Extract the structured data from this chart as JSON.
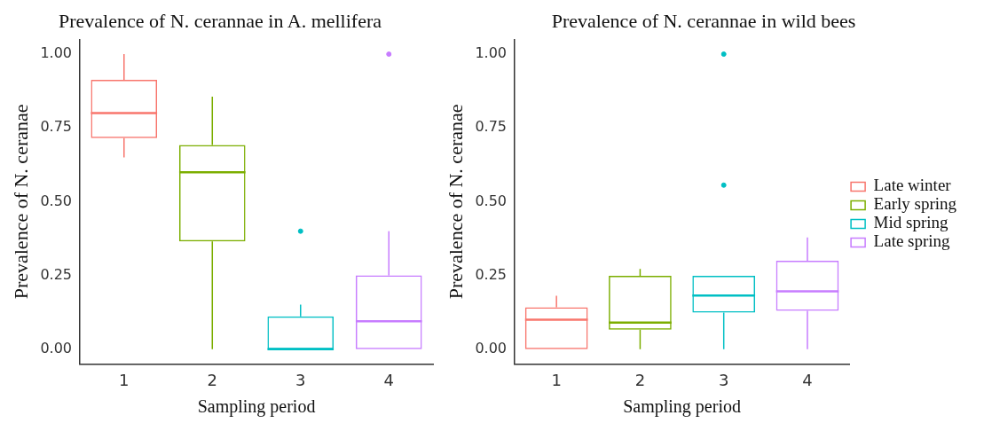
{
  "chart_data": [
    {
      "type": "box",
      "title": "Prevalence of N. cerannae in A. mellifera",
      "xlabel": "Sampling period",
      "ylabel": "Prevalence of N. ceranae",
      "categories": [
        "1",
        "2",
        "3",
        "4"
      ],
      "ylim": [
        -0.05,
        1.05
      ],
      "yticks": [
        {
          "value": 0,
          "label": "0.00"
        },
        {
          "value": 0.25,
          "label": "0.25"
        },
        {
          "value": 0.5,
          "label": "0.50"
        },
        {
          "value": 0.75,
          "label": "0.75"
        },
        {
          "value": 1,
          "label": "1.00"
        }
      ],
      "series": [
        {
          "color": "#f8766d",
          "boxes": [
            {
              "low": 0.65,
              "q1": 0.715,
              "median": 0.8,
              "q3": 0.913,
              "high": 1.0
            },
            null,
            null,
            null
          ]
        },
        {
          "color": "#7cae00",
          "boxes": [
            null,
            {
              "low": 0,
              "q1": 0.365,
              "median": 0.6,
              "q3": 0.692,
              "high": 0.856
            },
            null,
            null
          ]
        },
        {
          "color": "#00bfc4",
          "boxes": [
            null,
            null,
            {
              "low": 0,
              "q1": 0,
              "median": 0,
              "q3": 0.111,
              "high": 0.151,
              "outliers": [
                0.4
              ]
            },
            null
          ]
        },
        {
          "color": "#c77cff",
          "boxes": [
            null,
            null,
            null,
            {
              "low": 0,
              "q1": 0,
              "median": 0.095,
              "q3": 0.25,
              "high": 0.4,
              "outliers": [
                1.0
              ]
            }
          ]
        }
      ]
    },
    {
      "type": "box",
      "title": "Prevalence of N. cerannae in wild bees",
      "xlabel": "Sampling period",
      "ylabel": "Prevalence of N. ceranae",
      "categories": [
        "1",
        "2",
        "3",
        "4"
      ],
      "ylim": [
        -0.05,
        1.05
      ],
      "yticks": [
        {
          "value": 0,
          "label": "0.00"
        },
        {
          "value": 0.25,
          "label": "0.25"
        },
        {
          "value": 0.5,
          "label": "0.50"
        },
        {
          "value": 0.75,
          "label": "0.75"
        },
        {
          "value": 1,
          "label": "1.00"
        }
      ],
      "legend": "right",
      "series": [
        {
          "name": "Late winter",
          "color": "#f8766d",
          "boxes": [
            {
              "low": 0,
              "q1": 0,
              "median": 0.1,
              "q3": 0.142,
              "high": 0.181
            },
            null,
            null,
            null
          ]
        },
        {
          "name": "Early spring",
          "color": "#7cae00",
          "boxes": [
            null,
            {
              "low": 0,
              "q1": 0.066,
              "median": 0.09,
              "q3": 0.249,
              "high": 0.272
            },
            null,
            null
          ]
        },
        {
          "name": "Mid spring",
          "color": "#00bfc4",
          "boxes": [
            null,
            null,
            {
              "low": 0,
              "q1": 0.124,
              "median": 0.182,
              "q3": 0.249,
              "high": 0.249,
              "outliers": [
                0.556,
                1.0
              ]
            },
            null
          ]
        },
        {
          "name": "Late spring",
          "color": "#c77cff",
          "boxes": [
            null,
            null,
            null,
            {
              "low": 0,
              "q1": 0.13,
              "median": 0.196,
              "q3": 0.3,
              "high": 0.379
            }
          ]
        }
      ]
    }
  ]
}
